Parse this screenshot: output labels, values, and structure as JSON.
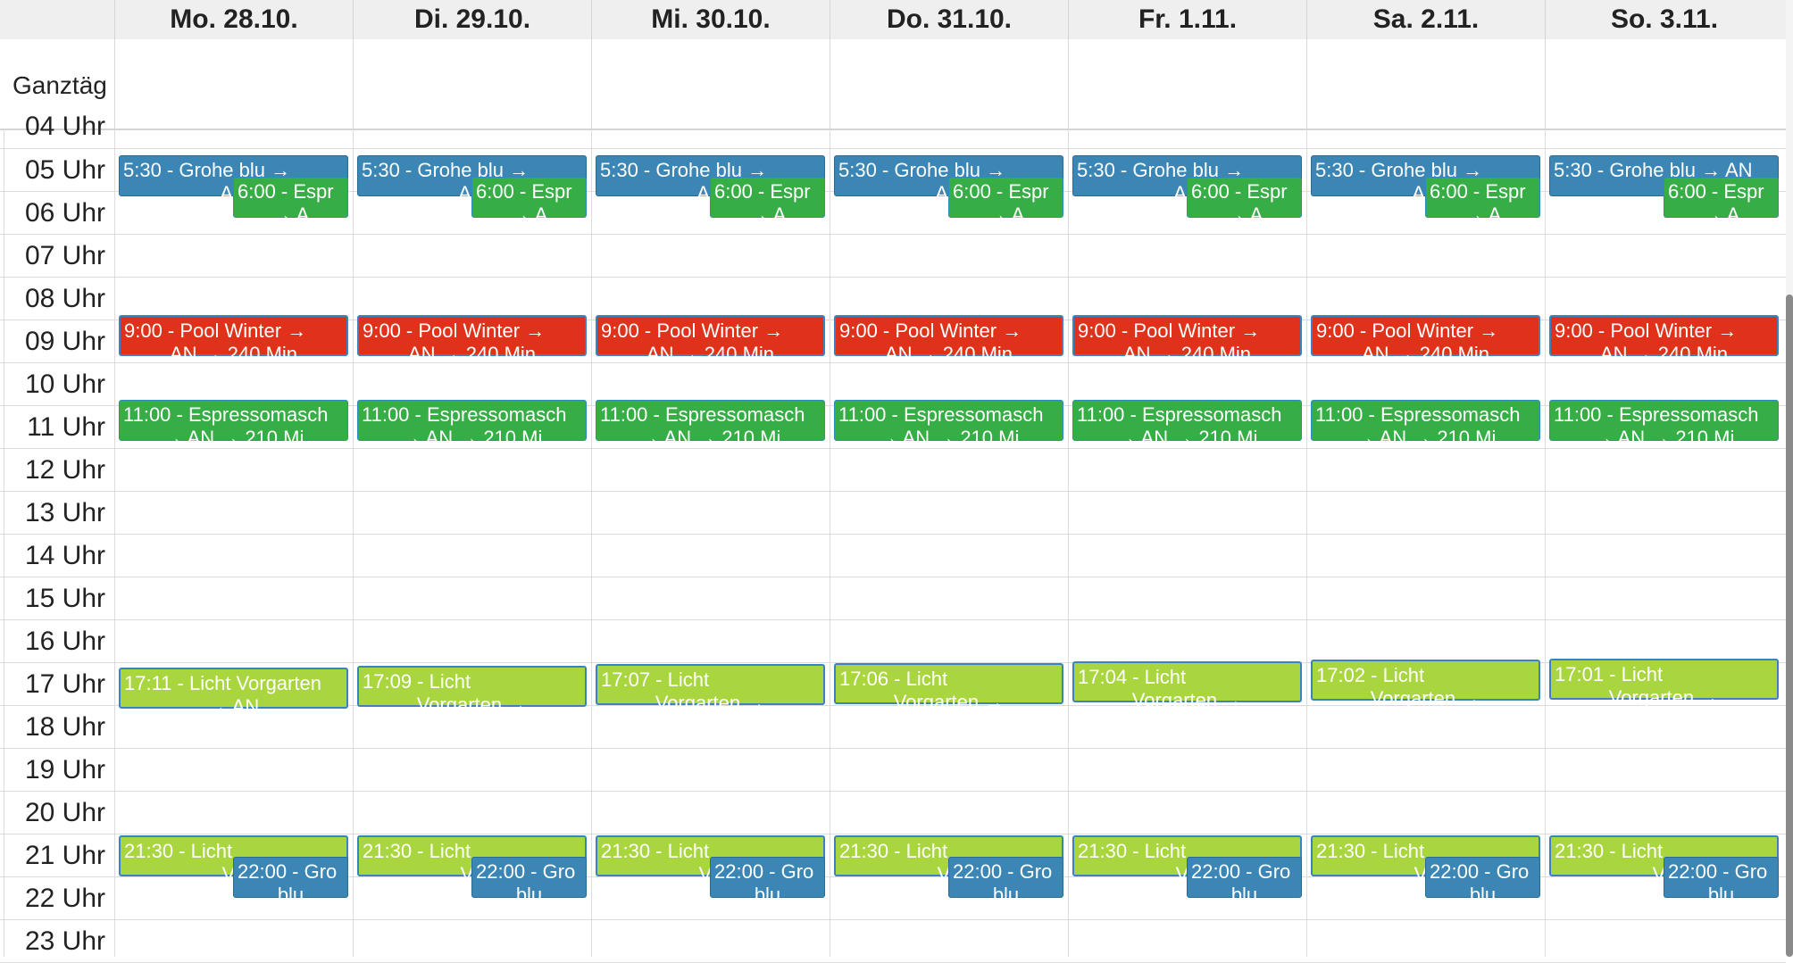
{
  "days": [
    "Mo. 28.10.",
    "Di. 29.10.",
    "Mi. 30.10.",
    "Do. 31.10.",
    "Fr. 1.11.",
    "Sa. 2.11.",
    "So. 3.11."
  ],
  "allday_label": "Ganztäg",
  "hour_partial_label": "04 Uhr",
  "hours": [
    "05 Uhr",
    "06 Uhr",
    "07 Uhr",
    "08 Uhr",
    "09 Uhr",
    "10 Uhr",
    "11 Uhr",
    "12 Uhr",
    "13 Uhr",
    "14 Uhr",
    "15 Uhr",
    "16 Uhr",
    "17 Uhr",
    "18 Uhr",
    "19 Uhr",
    "20 Uhr",
    "21 Uhr",
    "22 Uhr",
    "23 Uhr"
  ],
  "colors": {
    "blue": "#3b86b4",
    "green": "#36ad45",
    "red": "#e0321a",
    "lime": "#a9d63f"
  },
  "events": {
    "grohe_morning": {
      "title": "5:30 - Grohe blu →",
      "sub": "AN"
    },
    "grohe_morning_last": {
      "title": "5:30 - Grohe blu → AN",
      "sub": ""
    },
    "espresso_morning": {
      "title": "6:00 - Espr",
      "sub": "→ A"
    },
    "pool": {
      "title": "9:00 - Pool Winter →",
      "sub": "AN → 240 Min"
    },
    "espresso_11": {
      "title": "11:00 - Espressomasch",
      "sub": "→ AN → 210 Mi"
    },
    "licht_day": [
      {
        "title": "17:11 - Licht Vorgarten",
        "sub": "→ AN"
      },
      {
        "title": "17:09 - Licht",
        "sub": "Vorgarten →"
      },
      {
        "title": "17:07 - Licht",
        "sub": "Vorgarten →"
      },
      {
        "title": "17:06 - Licht",
        "sub": "Vorgarten →"
      },
      {
        "title": "17:04 - Licht",
        "sub": "Vorgarten →"
      },
      {
        "title": "17:02 - Licht",
        "sub": "Vorgarten →"
      },
      {
        "title": "17:01 - Licht",
        "sub": "Vorgarten →"
      }
    ],
    "licht_night": {
      "title": "21:30 - Licht",
      "sub": "Vo"
    },
    "grohe_night": {
      "title": "22:00 - Gro",
      "sub": "blu"
    }
  }
}
